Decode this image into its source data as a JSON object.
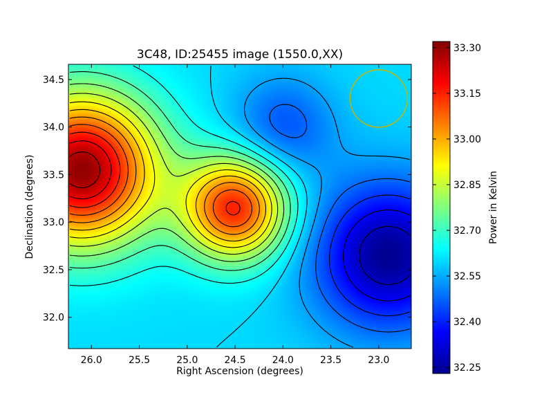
{
  "chart_data": {
    "type": "heatmap",
    "title": "3C48, ID:25455 image (1550.0,XX)",
    "xlabel": "Right Ascension (degrees)",
    "ylabel": "Declination (degrees)",
    "colorbar_label": "Power in Kelvin",
    "colormap": "jet",
    "x_inverted": true,
    "xlim": [
      26.24,
      22.66
    ],
    "ylim": [
      31.67,
      34.66
    ],
    "clim": [
      32.23,
      33.32
    ],
    "xticks": [
      26.0,
      25.5,
      25.0,
      24.5,
      24.0,
      23.5,
      23.0
    ],
    "xtick_labels": [
      "26.0",
      "25.5",
      "25.0",
      "24.5",
      "24.0",
      "23.5",
      "23.0"
    ],
    "yticks": [
      32.0,
      32.5,
      33.0,
      33.5,
      34.0,
      34.5
    ],
    "ytick_labels": [
      "32.0",
      "32.5",
      "33.0",
      "33.5",
      "34.0",
      "34.5"
    ],
    "cbar_ticks": [
      32.25,
      32.4,
      32.55,
      32.7,
      32.85,
      33.0,
      33.15,
      33.3
    ],
    "cbar_tick_labels": [
      "32.25",
      "32.40",
      "32.55",
      "32.70",
      "32.85",
      "33.00",
      "33.15",
      "33.30"
    ],
    "features": [
      {
        "ra": 26.1,
        "dec": 33.55,
        "value": 33.3
      },
      {
        "ra": 24.5,
        "dec": 33.15,
        "value": 33.15
      },
      {
        "ra": 24.0,
        "dec": 34.0,
        "value": 32.45
      },
      {
        "ra": 22.9,
        "dec": 32.65,
        "value": 32.25
      }
    ],
    "background_value": 32.6,
    "beam_circle": {
      "ra": 23.0,
      "dec": 34.3,
      "radius_deg": 0.3,
      "color": "#c8b400"
    },
    "contour_levels": [
      32.3,
      32.36,
      32.42,
      32.48,
      32.54,
      32.6,
      32.66,
      32.72,
      32.78,
      32.84,
      32.9,
      32.96,
      33.02,
      33.08,
      33.14,
      33.2,
      33.26
    ]
  }
}
